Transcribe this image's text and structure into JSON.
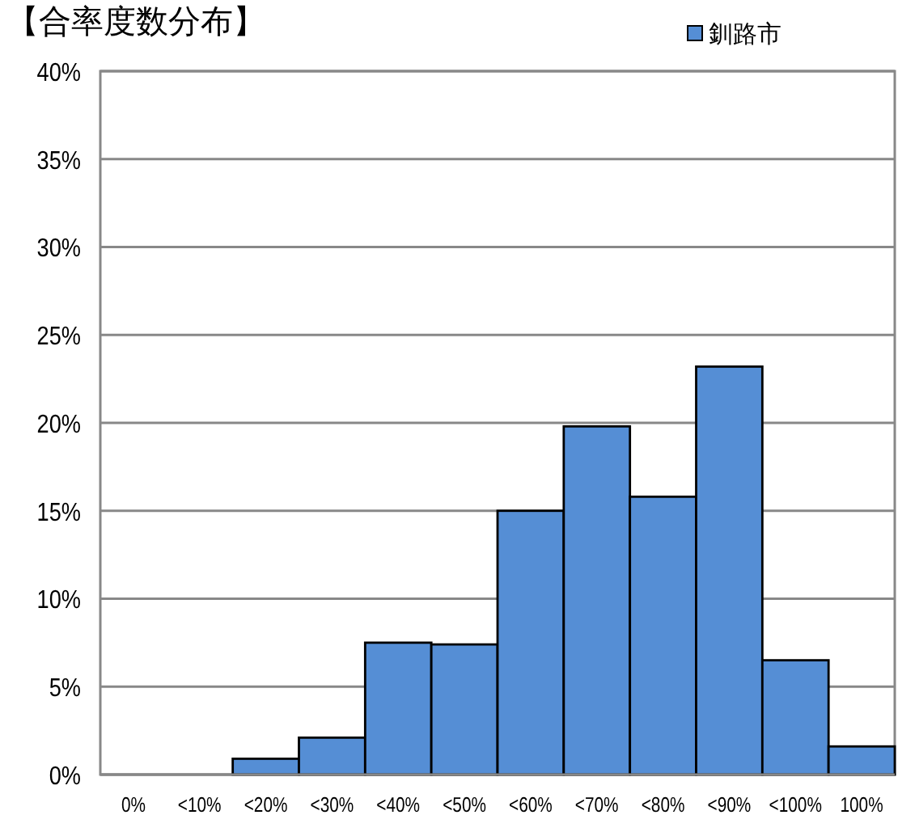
{
  "chart_data": {
    "type": "bar",
    "title": "【合率度数分布】",
    "categories": [
      "0%",
      "<10%",
      "<20%",
      "<30%",
      "<40%",
      "<50%",
      "<60%",
      "<70%",
      "<80%",
      "<90%",
      "<100%",
      "100%"
    ],
    "series": [
      {
        "name": "釧路市",
        "color": "#558ed5",
        "values": [
          0,
          0,
          0.9,
          2.1,
          7.5,
          7.4,
          15.0,
          19.8,
          15.8,
          23.2,
          6.5,
          1.6
        ]
      }
    ],
    "ylim": [
      0,
      40
    ],
    "yticks": [
      {
        "value": 0,
        "label": "0%"
      },
      {
        "value": 5,
        "label": "5%"
      },
      {
        "value": 10,
        "label": "10%"
      },
      {
        "value": 15,
        "label": "15%"
      },
      {
        "value": 20,
        "label": "20%"
      },
      {
        "value": 25,
        "label": "25%"
      },
      {
        "value": 30,
        "label": "30%"
      },
      {
        "value": 35,
        "label": "35%"
      },
      {
        "value": 40,
        "label": "40%"
      }
    ],
    "grid": "y",
    "legend": "top right"
  }
}
